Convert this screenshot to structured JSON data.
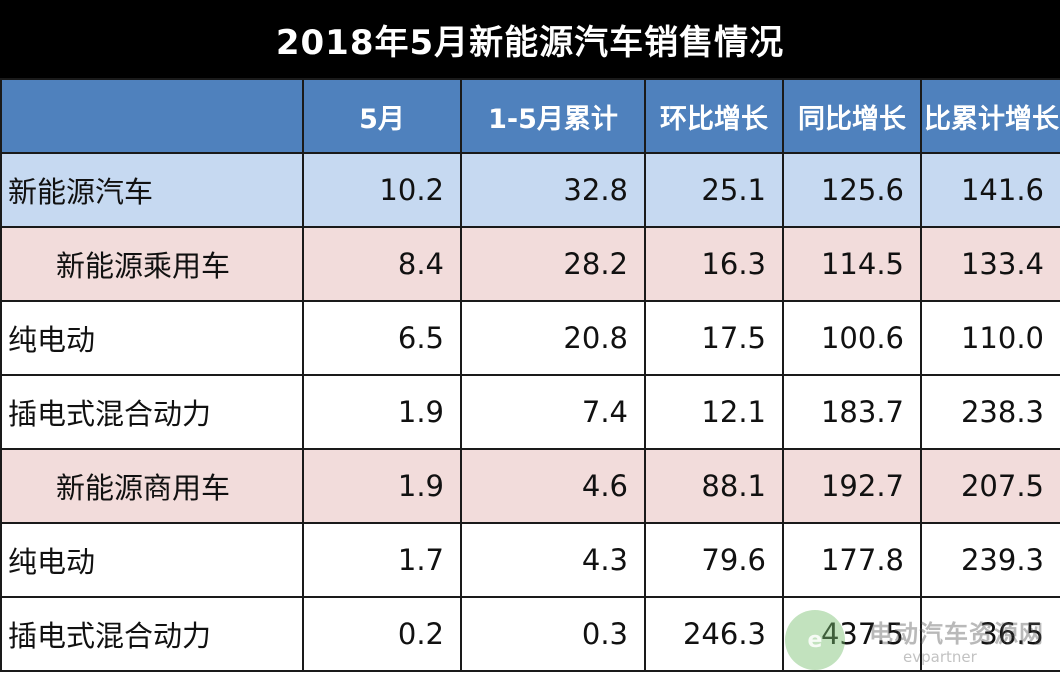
{
  "title": "2018年5月新能源汽车销售情况",
  "columns": [
    "",
    "5月",
    "1-5月累计",
    "环比增长",
    "同比增长",
    "比累计增长"
  ],
  "rows": [
    {
      "name": "新能源汽车",
      "type": "total",
      "values": [
        "10.2",
        "32.8",
        "25.1",
        "125.6",
        "141.6"
      ]
    },
    {
      "name": "新能源乘用车",
      "type": "sub",
      "values": [
        "8.4",
        "28.2",
        "16.3",
        "114.5",
        "133.4"
      ]
    },
    {
      "name": "纯电动",
      "type": "plain",
      "values": [
        "6.5",
        "20.8",
        "17.5",
        "100.6",
        "110.0"
      ]
    },
    {
      "name": "插电式混合动力",
      "type": "plain",
      "values": [
        "1.9",
        "7.4",
        "12.1",
        "183.7",
        "238.3"
      ]
    },
    {
      "name": "新能源商用车",
      "type": "sub",
      "values": [
        "1.9",
        "4.6",
        "88.1",
        "192.7",
        "207.5"
      ]
    },
    {
      "name": "纯电动",
      "type": "plain",
      "values": [
        "1.7",
        "4.3",
        "79.6",
        "177.8",
        "239.3"
      ]
    },
    {
      "name": "插电式混合动力",
      "type": "plain",
      "values": [
        "0.2",
        "0.3",
        "246.3",
        "437.5",
        "36.5"
      ]
    }
  ],
  "watermark": {
    "logo_text": "e",
    "text": "电动汽车资源网",
    "url": "evpartner"
  },
  "colors": {
    "title_bg": "#000000",
    "header_bg": "#4f81bd",
    "total_row_bg": "#c6d9f1",
    "sub_row_bg": "#f2dcdb"
  }
}
